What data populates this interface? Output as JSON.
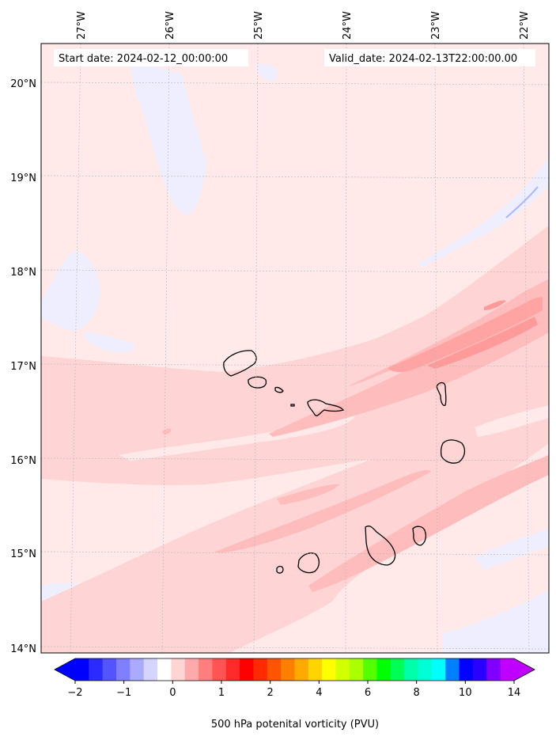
{
  "header": {
    "start_date": "Start date: 2024-02-12_00:00:00",
    "valid_date": "Valid_date: 2024-02-13T22:00:00.00"
  },
  "axes": {
    "lon_labels": [
      "27°W",
      "26°W",
      "25°W",
      "24°W",
      "23°W",
      "22°W"
    ],
    "lat_labels": [
      "20°N",
      "19°N",
      "18°N",
      "17°N",
      "16°N",
      "15°N",
      "14°N"
    ]
  },
  "colorbar": {
    "title": "500 hPa potenital vorticity (PVU)",
    "tick_labels": [
      "−2",
      "−1",
      "0",
      "1",
      "2",
      "4",
      "6",
      "8",
      "10",
      "14"
    ],
    "colors": [
      "#0000ff",
      "#2b2bff",
      "#5454ff",
      "#7f7fff",
      "#aaaaff",
      "#d4d4ff",
      "#ffffff",
      "#ffd4d4",
      "#ffaaaa",
      "#ff7f7f",
      "#ff5454",
      "#ff2b2b",
      "#ff0000",
      "#ff2a00",
      "#ff5500",
      "#ff8000",
      "#ffaa00",
      "#ffd400",
      "#ffff00",
      "#d4ff00",
      "#aaff00",
      "#55ff00",
      "#00ff00",
      "#00ff55",
      "#00ffaa",
      "#00ffd4",
      "#00ffff",
      "#0080ff",
      "#0000ff",
      "#2a00ff",
      "#8000ff",
      "#c000ff"
    ],
    "under_color": "#0000ff",
    "over_color": "#c000ff"
  },
  "palette": {
    "ocean_light_pink": "#ffe8e8",
    "pink_1": "#ffd4d4",
    "pink_2": "#ffbcbc",
    "pink_3": "#ffa3a3",
    "pink_4": "#ff8c8c",
    "lavender": "#eeeeff",
    "blue_line": "#aab4ff",
    "coast": "#000000"
  }
}
